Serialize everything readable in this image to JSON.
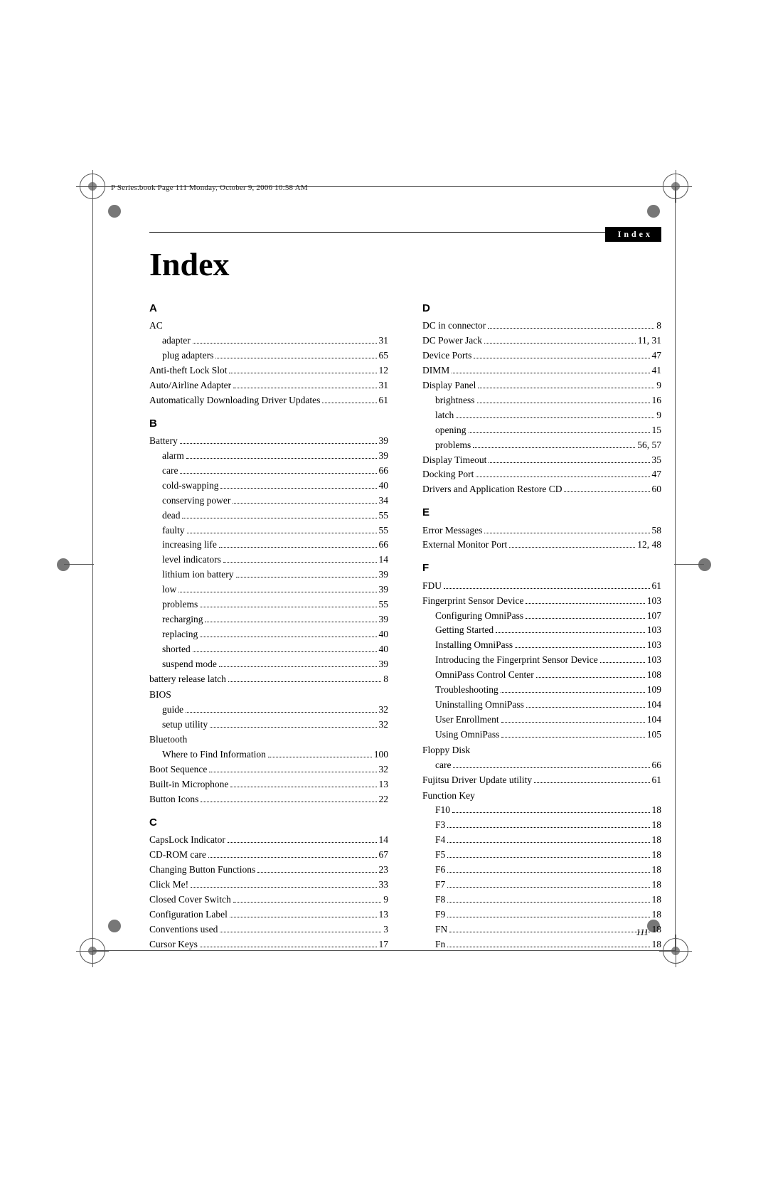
{
  "header_text": "P Series.book  Page 111  Monday, October 9, 2006  10:58 AM",
  "badge_label": "Index",
  "title": "Index",
  "page_number": "111",
  "sections_left": [
    {
      "letter": "A",
      "entries": [
        {
          "term": "AC",
          "page": "",
          "nodots": true
        },
        {
          "term": "adapter",
          "page": "31",
          "sub": true
        },
        {
          "term": "plug adapters",
          "page": "65",
          "sub": true
        },
        {
          "term": "Anti-theft Lock Slot",
          "page": "12"
        },
        {
          "term": "Auto/Airline Adapter",
          "page": "31"
        },
        {
          "term": "Automatically Downloading Driver Updates",
          "page": "61"
        }
      ]
    },
    {
      "letter": "B",
      "entries": [
        {
          "term": "Battery",
          "page": "39"
        },
        {
          "term": "alarm",
          "page": "39",
          "sub": true
        },
        {
          "term": "care",
          "page": "66",
          "sub": true
        },
        {
          "term": "cold-swapping",
          "page": "40",
          "sub": true
        },
        {
          "term": "conserving power",
          "page": "34",
          "sub": true
        },
        {
          "term": "dead",
          "page": "55",
          "sub": true
        },
        {
          "term": "faulty",
          "page": "55",
          "sub": true
        },
        {
          "term": "increasing life",
          "page": "66",
          "sub": true
        },
        {
          "term": "level indicators",
          "page": "14",
          "sub": true
        },
        {
          "term": "lithium ion battery",
          "page": "39",
          "sub": true
        },
        {
          "term": "low",
          "page": "39",
          "sub": true
        },
        {
          "term": "problems",
          "page": "55",
          "sub": true
        },
        {
          "term": "recharging",
          "page": "39",
          "sub": true
        },
        {
          "term": "replacing",
          "page": "40",
          "sub": true
        },
        {
          "term": "shorted",
          "page": "40",
          "sub": true
        },
        {
          "term": "suspend mode",
          "page": "39",
          "sub": true
        },
        {
          "term": "battery release latch",
          "page": "8"
        },
        {
          "term": "BIOS",
          "page": "",
          "nodots": true
        },
        {
          "term": "guide",
          "page": "32",
          "sub": true
        },
        {
          "term": "setup utility",
          "page": "32",
          "sub": true
        },
        {
          "term": "Bluetooth",
          "page": "",
          "nodots": true
        },
        {
          "term": "Where to Find Information",
          "page": "100",
          "sub": true
        },
        {
          "term": "Boot Sequence",
          "page": "32"
        },
        {
          "term": "Built-in Microphone",
          "page": "13"
        },
        {
          "term": "Button Icons",
          "page": "22"
        }
      ]
    },
    {
      "letter": "C",
      "entries": [
        {
          "term": "CapsLock Indicator",
          "page": "14"
        },
        {
          "term": "CD-ROM care",
          "page": "67"
        },
        {
          "term": "Changing Button Functions",
          "page": "23"
        },
        {
          "term": "Click Me!",
          "page": "33"
        },
        {
          "term": "Closed Cover Switch",
          "page": "9"
        },
        {
          "term": "Configuration Label",
          "page": "13"
        },
        {
          "term": "Conventions used",
          "page": "3"
        },
        {
          "term": "Cursor Keys",
          "page": "17"
        }
      ]
    }
  ],
  "sections_right": [
    {
      "letter": "D",
      "entries": [
        {
          "term": "DC in connector",
          "page": "8"
        },
        {
          "term": "DC Power Jack",
          "page": "11, 31"
        },
        {
          "term": "Device Ports",
          "page": "47"
        },
        {
          "term": "DIMM",
          "page": "41"
        },
        {
          "term": "Display Panel",
          "page": "9"
        },
        {
          "term": "brightness",
          "page": "16",
          "sub": true
        },
        {
          "term": "latch",
          "page": "9",
          "sub": true
        },
        {
          "term": "opening",
          "page": "15",
          "sub": true
        },
        {
          "term": "problems",
          "page": "56, 57",
          "sub": true
        },
        {
          "term": "Display Timeout",
          "page": "35"
        },
        {
          "term": "Docking Port",
          "page": "47"
        },
        {
          "term": "Drivers and Application Restore CD",
          "page": "60"
        }
      ]
    },
    {
      "letter": "E",
      "entries": [
        {
          "term": "Error Messages",
          "page": "58"
        },
        {
          "term": "External Monitor Port",
          "page": "12, 48"
        }
      ]
    },
    {
      "letter": "F",
      "entries": [
        {
          "term": "FDU",
          "page": "61"
        },
        {
          "term": "Fingerprint Sensor Device",
          "page": "103"
        },
        {
          "term": "Configuring OmniPass",
          "page": "107",
          "sub": true
        },
        {
          "term": "Getting Started",
          "page": "103",
          "sub": true
        },
        {
          "term": "Installing OmniPass",
          "page": "103",
          "sub": true
        },
        {
          "term": "Introducing the Fingerprint Sensor Device",
          "page": "103",
          "sub": true
        },
        {
          "term": "OmniPass Control Center",
          "page": "108",
          "sub": true
        },
        {
          "term": "Troubleshooting",
          "page": "109",
          "sub": true
        },
        {
          "term": "Uninstalling OmniPass",
          "page": "104",
          "sub": true
        },
        {
          "term": "User Enrollment",
          "page": "104",
          "sub": true
        },
        {
          "term": "Using OmniPass",
          "page": "105",
          "sub": true
        },
        {
          "term": "Floppy Disk",
          "page": "",
          "nodots": true
        },
        {
          "term": "care",
          "page": "66",
          "sub": true
        },
        {
          "term": "Fujitsu Driver Update utility",
          "page": "61"
        },
        {
          "term": "Function Key",
          "page": "",
          "nodots": true
        },
        {
          "term": "F10",
          "page": "18",
          "sub": true
        },
        {
          "term": "F3",
          "page": "18",
          "sub": true
        },
        {
          "term": "F4",
          "page": "18",
          "sub": true
        },
        {
          "term": "F5",
          "page": "18",
          "sub": true
        },
        {
          "term": "F6",
          "page": "18",
          "sub": true
        },
        {
          "term": "F7",
          "page": "18",
          "sub": true
        },
        {
          "term": "F8",
          "page": "18",
          "sub": true
        },
        {
          "term": "F9",
          "page": "18",
          "sub": true
        },
        {
          "term": "FN",
          "page": "18",
          "sub": true
        },
        {
          "term": "Fn",
          "page": "18",
          "sub": true
        }
      ]
    }
  ]
}
